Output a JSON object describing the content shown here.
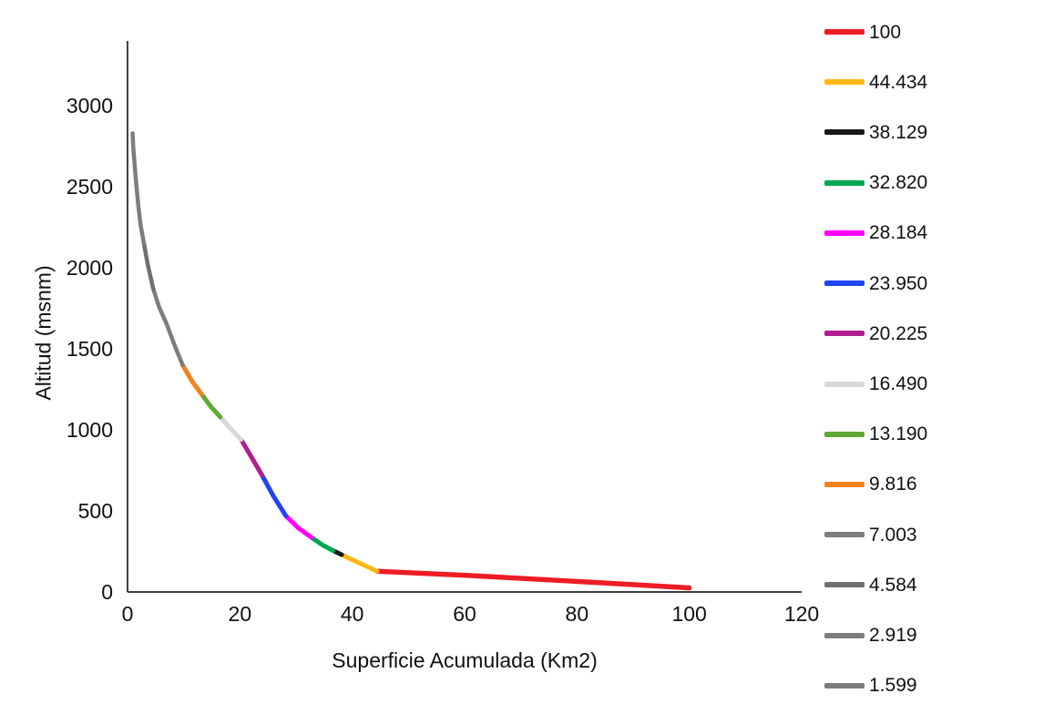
{
  "page": {
    "background": "#ffffff",
    "axis_color": "#3f3f3f",
    "text_color": "#111111"
  },
  "chart_data": {
    "type": "line",
    "title": "",
    "xlabel": "Superficie Acumulada (Km2)",
    "ylabel": "Altitud (msnm)",
    "xlim": [
      0,
      120
    ],
    "ylim": [
      0,
      3400
    ],
    "x_ticks": [
      0,
      20,
      40,
      60,
      80,
      100,
      120
    ],
    "y_ticks": [
      0,
      500,
      1000,
      1500,
      2000,
      2500,
      3000
    ],
    "grid": false,
    "legend_position": "right",
    "series": [
      {
        "name": "100",
        "color": "#ee1c25",
        "width": 5.5,
        "points": [
          [
            44.434,
            128
          ],
          [
            60,
            103
          ],
          [
            80,
            65
          ],
          [
            100,
            25
          ]
        ]
      },
      {
        "name": "44.434",
        "color": "#fdb714",
        "width": 5,
        "points": [
          [
            38.129,
            230
          ],
          [
            41.2,
            180
          ],
          [
            44.434,
            128
          ]
        ]
      },
      {
        "name": "38.129",
        "color": "#1a1a1a",
        "width": 5,
        "points": [
          [
            36.6,
            255
          ],
          [
            38.129,
            230
          ]
        ]
      },
      {
        "name": "32.820",
        "color": "#00a651",
        "width": 5,
        "points": [
          [
            32.82,
            335
          ],
          [
            34.8,
            288
          ],
          [
            36.6,
            255
          ]
        ]
      },
      {
        "name": "28.184",
        "color": "#ff00ff",
        "width": 5,
        "points": [
          [
            28.184,
            470
          ],
          [
            30.4,
            395
          ],
          [
            32.82,
            335
          ]
        ]
      },
      {
        "name": "23.950",
        "color": "#2045f0",
        "width": 5,
        "points": [
          [
            23.95,
            720
          ],
          [
            26.0,
            590
          ],
          [
            28.184,
            470
          ]
        ]
      },
      {
        "name": "20.225",
        "color": "#b01e8e",
        "width": 5,
        "points": [
          [
            20.225,
            940
          ],
          [
            22.1,
            830
          ],
          [
            23.95,
            720
          ]
        ]
      },
      {
        "name": "16.490",
        "color": "#d8d8d8",
        "width": 5,
        "points": [
          [
            16.49,
            1080
          ],
          [
            18.3,
            1010
          ],
          [
            20.225,
            940
          ]
        ]
      },
      {
        "name": "13.190",
        "color": "#62a832",
        "width": 5,
        "points": [
          [
            13.19,
            1220
          ],
          [
            14.8,
            1145
          ],
          [
            16.49,
            1080
          ]
        ]
      },
      {
        "name": "9.816",
        "color": "#f58220",
        "width": 5,
        "points": [
          [
            9.816,
            1400
          ],
          [
            11.5,
            1300
          ],
          [
            13.19,
            1220
          ]
        ]
      },
      {
        "name": "7.003",
        "color": "#7d7d7d",
        "width": 4.5,
        "points": [
          [
            4.584,
            1870
          ],
          [
            5.6,
            1760
          ],
          [
            7.003,
            1650
          ],
          [
            8.4,
            1520
          ],
          [
            9.816,
            1400
          ]
        ]
      },
      {
        "name": "4.584",
        "color": "#6e6e6e",
        "width": 4.5,
        "points": [
          [
            2.919,
            2150
          ],
          [
            3.6,
            2020
          ],
          [
            4.584,
            1870
          ]
        ]
      },
      {
        "name": "2.919",
        "color": "#7d7d7d",
        "width": 4.5,
        "points": [
          [
            1.599,
            2500
          ],
          [
            1.9,
            2390
          ],
          [
            2.3,
            2270
          ],
          [
            2.919,
            2150
          ]
        ]
      },
      {
        "name": "1.599",
        "color": "#7d7d7d",
        "width": 4.5,
        "points": [
          [
            0.9,
            2830
          ],
          [
            1.0,
            2755
          ],
          [
            1.15,
            2685
          ],
          [
            1.35,
            2600
          ],
          [
            1.599,
            2500
          ]
        ]
      }
    ]
  }
}
